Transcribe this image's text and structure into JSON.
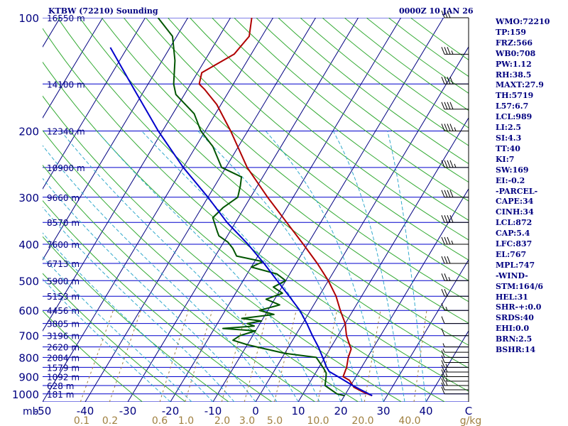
{
  "header": {
    "station": "KTBW (72210) Sounding",
    "time": "0000Z 10 JAN 26"
  },
  "colors": {
    "text": "#000080",
    "isobar": "#0000cc",
    "isotherm": "#000080",
    "dry_adiabat": "#33aa33",
    "moist_adiabat": "#33aacc",
    "mixing_ratio": "#a08040",
    "temperature": "#b00000",
    "dewpoint": "#005500",
    "parcel": "#0000cc",
    "wind_barb": "#000000"
  },
  "indices": [
    "WMO:72210",
    "TP:159",
    "FRZ:566",
    "WB0:708",
    "PW:1.12",
    "RH:38.5",
    "MAXT:27.9",
    "TH:5719",
    "L57:6.7",
    "LCL:989",
    "LI:2.5",
    "SI:4.3",
    "TT:40",
    "KI:7",
    "SW:169",
    "EI:-0.2",
    "-PARCEL-",
    "CAPE:34",
    "CINH:34",
    "LCL:872",
    "CAP:5.4",
    "LFC:837",
    "EL:767",
    "MPL:747",
    "-WIND-",
    "STM:164/6",
    "HEL:31",
    "SHR-+:0.0",
    "SRDS:40",
    "EHI:0.0",
    "BRN:2.5",
    "BSHR:14"
  ],
  "chart_data": {
    "type": "line",
    "title": "KTBW (72210) Sounding",
    "subtitle": "0000Z 10 JAN 26",
    "xlabel": "",
    "ylabel": "mb",
    "x_unit": "C",
    "ylim": [
      1050,
      100
    ],
    "xlim": [
      -50,
      50
    ],
    "y_scale": "log",
    "pressure_labels": [
      "100",
      "200",
      "300",
      "400",
      "500",
      "600",
      "700",
      "800",
      "900",
      "1000"
    ],
    "pressure_ticks": [
      100,
      200,
      300,
      400,
      500,
      600,
      700,
      800,
      900,
      1000
    ],
    "temp_labels": [
      "-50",
      "-40",
      "-30",
      "-20",
      "-10",
      "0",
      "10",
      "20",
      "30",
      "40"
    ],
    "temp_ticks": [
      -50,
      -40,
      -30,
      -20,
      -10,
      0,
      10,
      20,
      30,
      40
    ],
    "mixing_ratio_unit": "g/kg",
    "mixing_ratio_labels": [
      "0.1",
      "0.2",
      "0.6",
      "1.0",
      "2.0",
      "3.0",
      "5.0",
      "10.0",
      "20.0",
      "40.0"
    ],
    "mixing_ratio_values": [
      0.1,
      0.2,
      0.6,
      1.0,
      2.0,
      3.0,
      5.0,
      10.0,
      20.0,
      40.0
    ],
    "heights": [
      {
        "p": 150,
        "label": "14100 m"
      },
      {
        "p": 200,
        "label": "12340 m"
      },
      {
        "p": 250,
        "label": "10900 m"
      },
      {
        "p": 300,
        "label": "9660 m"
      },
      {
        "p": 350,
        "label": "8570 m"
      },
      {
        "p": 400,
        "label": "7600 m"
      },
      {
        "p": 450,
        "label": "6713 m"
      },
      {
        "p": 500,
        "label": "5900 m"
      },
      {
        "p": 550,
        "label": "5153 m"
      },
      {
        "p": 600,
        "label": "4456 m"
      },
      {
        "p": 650,
        "label": "3805 m"
      },
      {
        "p": 700,
        "label": "3196 m"
      },
      {
        "p": 750,
        "label": "2620 m"
      },
      {
        "p": 800,
        "label": "2084 m"
      },
      {
        "p": 850,
        "label": "1579 m"
      },
      {
        "p": 900,
        "label": "1092 m"
      },
      {
        "p": 950,
        "label": "628 m"
      },
      {
        "p": 1000,
        "label": "181 m"
      }
    ],
    "top_height_label": "16550 m",
    "series": [
      {
        "id": "temperature",
        "points": [
          [
            1011,
            26.5
          ],
          [
            990,
            24
          ],
          [
            960,
            21
          ],
          [
            920,
            19
          ],
          [
            900,
            17
          ],
          [
            850,
            16.5
          ],
          [
            800,
            15.5
          ],
          [
            760,
            15
          ],
          [
            740,
            14
          ],
          [
            700,
            12
          ],
          [
            650,
            10
          ],
          [
            600,
            7
          ],
          [
            550,
            4
          ],
          [
            500,
            0
          ],
          [
            450,
            -5
          ],
          [
            400,
            -11
          ],
          [
            350,
            -18
          ],
          [
            300,
            -26
          ],
          [
            250,
            -35
          ],
          [
            200,
            -44
          ],
          [
            170,
            -51
          ],
          [
            155,
            -56
          ],
          [
            150,
            -58
          ],
          [
            140,
            -59
          ],
          [
            125,
            -54
          ],
          [
            112,
            -53
          ],
          [
            100,
            -55
          ]
        ]
      },
      {
        "id": "dewpoint",
        "points": [
          [
            1011,
            20
          ],
          [
            1000,
            18
          ],
          [
            950,
            14
          ],
          [
            900,
            13
          ],
          [
            880,
            12.5
          ],
          [
            860,
            11.5
          ],
          [
            800,
            8
          ],
          [
            780,
            0
          ],
          [
            760,
            -5
          ],
          [
            740,
            -10
          ],
          [
            720,
            -14
          ],
          [
            700,
            -13
          ],
          [
            680,
            -10
          ],
          [
            670,
            -18
          ],
          [
            660,
            -11
          ],
          [
            650,
            -13
          ],
          [
            640,
            -10
          ],
          [
            630,
            -15
          ],
          [
            615,
            -8
          ],
          [
            600,
            -12
          ],
          [
            580,
            -8
          ],
          [
            560,
            -12
          ],
          [
            540,
            -9
          ],
          [
            520,
            -12
          ],
          [
            500,
            -10
          ],
          [
            480,
            -13
          ],
          [
            460,
            -20
          ],
          [
            445,
            -18
          ],
          [
            430,
            -25
          ],
          [
            410,
            -27
          ],
          [
            395,
            -29
          ],
          [
            380,
            -32
          ],
          [
            370,
            -33
          ],
          [
            340,
            -36
          ],
          [
            320,
            -35
          ],
          [
            300,
            -33
          ],
          [
            280,
            -34
          ],
          [
            265,
            -35
          ],
          [
            250,
            -41
          ],
          [
            220,
            -46
          ],
          [
            200,
            -51
          ],
          [
            180,
            -55
          ],
          [
            160,
            -62
          ],
          [
            150,
            -64
          ],
          [
            130,
            -67
          ],
          [
            112,
            -71
          ],
          [
            100,
            -77
          ]
        ]
      },
      {
        "id": "parcel",
        "points": [
          [
            1011,
            26.5
          ],
          [
            990,
            24.5
          ],
          [
            950,
            20.5
          ],
          [
            900,
            15.8
          ],
          [
            872,
            13
          ],
          [
            850,
            11.8
          ],
          [
            800,
            9.5
          ],
          [
            750,
            7
          ],
          [
            700,
            4
          ],
          [
            650,
            1
          ],
          [
            600,
            -2.5
          ],
          [
            550,
            -7
          ],
          [
            500,
            -12
          ],
          [
            450,
            -17.5
          ],
          [
            400,
            -24
          ],
          [
            350,
            -32
          ],
          [
            300,
            -40
          ],
          [
            250,
            -50
          ],
          [
            200,
            -61
          ],
          [
            150,
            -74
          ],
          [
            120,
            -84
          ]
        ]
      }
    ],
    "wind_barbs_kt": [
      {
        "p": 1000,
        "speed": 10
      },
      {
        "p": 975,
        "speed": 10
      },
      {
        "p": 950,
        "speed": 15
      },
      {
        "p": 925,
        "speed": 15
      },
      {
        "p": 900,
        "speed": 15
      },
      {
        "p": 875,
        "speed": 15
      },
      {
        "p": 850,
        "speed": 15
      },
      {
        "p": 825,
        "speed": 10
      },
      {
        "p": 800,
        "speed": 10
      },
      {
        "p": 775,
        "speed": 5
      },
      {
        "p": 750,
        "speed": 5
      },
      {
        "p": 700,
        "speed": 10
      },
      {
        "p": 650,
        "speed": 10
      },
      {
        "p": 600,
        "speed": 15
      },
      {
        "p": 550,
        "speed": 20
      },
      {
        "p": 500,
        "speed": 25
      },
      {
        "p": 450,
        "speed": 30
      },
      {
        "p": 400,
        "speed": 35
      },
      {
        "p": 350,
        "speed": 40
      },
      {
        "p": 300,
        "speed": 40
      },
      {
        "p": 250,
        "speed": 45
      },
      {
        "p": 200,
        "speed": 45
      },
      {
        "p": 175,
        "speed": 40
      },
      {
        "p": 150,
        "speed": 40
      },
      {
        "p": 125,
        "speed": 35
      },
      {
        "p": 100,
        "speed": 30
      }
    ]
  }
}
